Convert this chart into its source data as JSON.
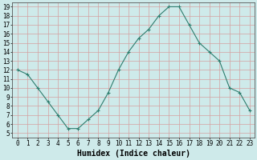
{
  "x": [
    0,
    1,
    2,
    3,
    4,
    5,
    6,
    7,
    8,
    9,
    10,
    11,
    12,
    13,
    14,
    15,
    16,
    17,
    18,
    19,
    20,
    21,
    22,
    23
  ],
  "y": [
    12,
    11.5,
    10,
    8.5,
    7,
    5.5,
    5.5,
    6.5,
    7.5,
    9.5,
    12,
    14,
    15.5,
    16.5,
    18,
    19,
    19,
    17,
    15,
    14,
    13,
    10,
    9.5,
    7.5
  ],
  "xlabel": "Humidex (Indice chaleur)",
  "xlim": [
    -0.5,
    23.5
  ],
  "ylim": [
    4.5,
    19.5
  ],
  "yticks": [
    5,
    6,
    7,
    8,
    9,
    10,
    11,
    12,
    13,
    14,
    15,
    16,
    17,
    18,
    19
  ],
  "xticks": [
    0,
    1,
    2,
    3,
    4,
    5,
    6,
    7,
    8,
    9,
    10,
    11,
    12,
    13,
    14,
    15,
    16,
    17,
    18,
    19,
    20,
    21,
    22,
    23
  ],
  "line_color": "#2d7d6e",
  "marker_color": "#2d7d6e",
  "bg_color": "#ceeaea",
  "grid_color": "#b0d8d8",
  "tick_fontsize": 5.5,
  "xlabel_fontsize": 7
}
